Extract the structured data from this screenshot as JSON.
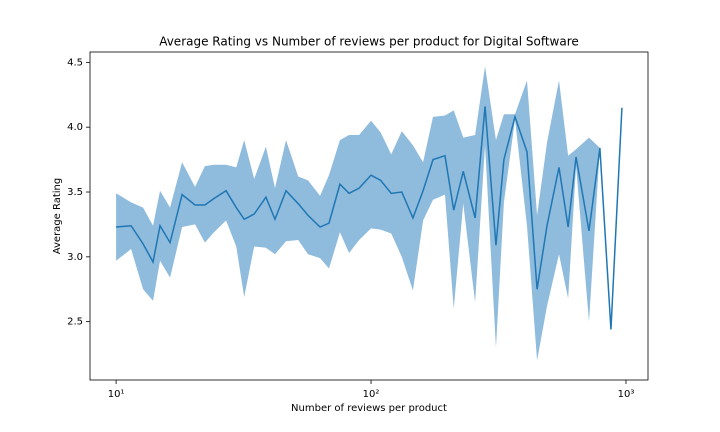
{
  "chart_data": {
    "type": "line",
    "title": "Average Rating vs Number of reviews per product for Digital Software",
    "x_label": "Number of reviews per product",
    "y_label": "Average Rating",
    "log_x": true,
    "color": "#1f77b4",
    "band_color": "#8fbbdd",
    "x": [
      10,
      11.45,
      12.76,
      13.96,
      14.87,
      16.28,
      18.15,
      20.4,
      22.3,
      24.2,
      27.0,
      29.6,
      31.8,
      34.8,
      38.7,
      42.0,
      46.4,
      51.8,
      56.6,
      63.1,
      68.4,
      75.5,
      82.0,
      89.8,
      100,
      109,
      120,
      132,
      146,
      160,
      175,
      195,
      211,
      230,
      256,
      280,
      309,
      332,
      367,
      409,
      448,
      490,
      546,
      593,
      637,
      716,
      790,
      873,
      964
    ],
    "values": [
      3.23,
      3.24,
      3.1,
      2.96,
      3.24,
      3.11,
      3.48,
      3.4,
      3.4,
      3.45,
      3.51,
      3.38,
      3.29,
      3.33,
      3.46,
      3.29,
      3.51,
      3.41,
      3.32,
      3.23,
      3.26,
      3.56,
      3.49,
      3.53,
      3.63,
      3.59,
      3.49,
      3.5,
      3.3,
      3.51,
      3.75,
      3.78,
      3.36,
      3.66,
      3.3,
      4.16,
      3.09,
      3.75,
      4.08,
      3.81,
      2.75,
      3.24,
      3.69,
      3.23,
      3.77,
      3.2,
      3.84,
      2.44,
      4.15
    ],
    "band_low": [
      2.97,
      3.06,
      2.75,
      2.66,
      2.97,
      2.84,
      3.23,
      3.25,
      3.11,
      3.19,
      3.28,
      3.08,
      2.69,
      3.08,
      3.07,
      3.02,
      3.12,
      3.13,
      3.02,
      2.99,
      2.91,
      3.19,
      3.03,
      3.13,
      3.22,
      3.21,
      3.18,
      3.0,
      2.74,
      3.28,
      3.44,
      3.48,
      2.6,
      3.41,
      2.65,
      3.86,
      2.3,
      3.42,
      4.06,
      3.24,
      2.2,
      2.62,
      3.02,
      2.68,
      3.7,
      2.5,
      3.84,
      2.44,
      4.15
    ],
    "band_high": [
      3.49,
      3.42,
      3.38,
      3.24,
      3.51,
      3.38,
      3.73,
      3.54,
      3.7,
      3.71,
      3.71,
      3.69,
      3.9,
      3.6,
      3.85,
      3.53,
      3.9,
      3.62,
      3.59,
      3.47,
      3.63,
      3.9,
      3.94,
      3.94,
      4.05,
      3.96,
      3.79,
      3.97,
      3.86,
      3.73,
      4.08,
      4.09,
      4.13,
      3.92,
      3.94,
      4.47,
      3.9,
      4.1,
      4.1,
      4.36,
      3.32,
      3.88,
      4.36,
      3.78,
      3.83,
      3.92,
      3.84,
      2.44,
      4.15
    ],
    "xlim": [
      7.9,
      1220
    ],
    "ylim": [
      2.05,
      4.58
    ],
    "xticks": [
      {
        "value": 10,
        "label": "10¹"
      },
      {
        "value": 100,
        "label": "10²"
      },
      {
        "value": 1000,
        "label": "10³"
      }
    ],
    "yticks": [
      2.5,
      {
        "value": 3,
        "label": "3.0"
      },
      3.5,
      {
        "value": 4,
        "label": "4.0"
      },
      4.5
    ]
  }
}
